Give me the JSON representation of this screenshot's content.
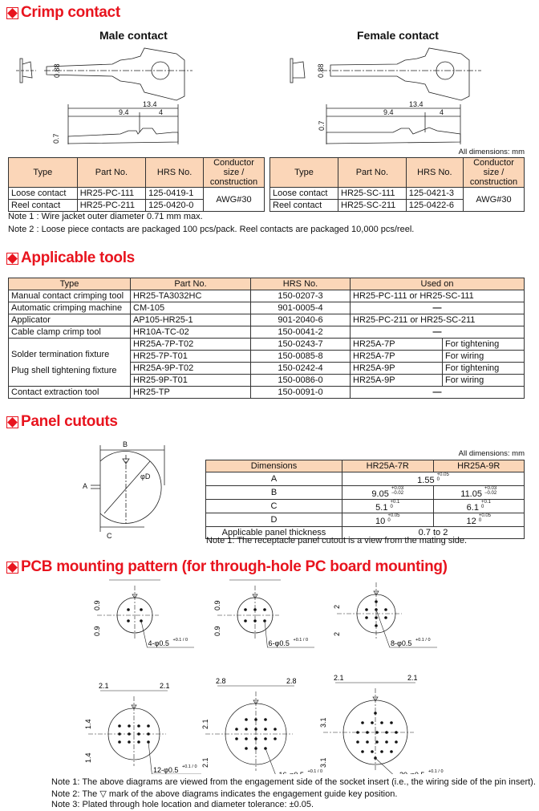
{
  "crimp": {
    "heading": "Crimp contact",
    "male_title": "Male contact",
    "female_title": "Female contact",
    "dims": {
      "height": "0.88",
      "total": "13.4",
      "left": "9.4",
      "right": "4",
      "thickness": "0.7"
    },
    "all_dims": "All dimensions: mm",
    "headers": [
      "Type",
      "Part No.",
      "HRS No.",
      "Conductor size / construction"
    ],
    "male_rows": [
      [
        "Loose contact",
        "HR25-PC-111",
        "125-0419-1"
      ],
      [
        "Reel contact",
        "HR25-PC-211",
        "125-0420-0"
      ]
    ],
    "female_rows": [
      [
        "Loose contact",
        "HR25-SC-111",
        "125-0421-3"
      ],
      [
        "Reel contact",
        "HR25-SC-211",
        "125-0422-6"
      ]
    ],
    "conductor": "AWG#30",
    "note1": "Note 1 : Wire jacket outer diameter 0.71 mm max.",
    "note2": "Note 2 : Loose piece contacts are packaged 100 pcs/pack. Reel contacts are packaged 10,000 pcs/reel."
  },
  "tools": {
    "heading": "Applicable tools",
    "headers": [
      "Type",
      "Part No.",
      "HRS No.",
      "Used on"
    ],
    "rows": [
      {
        "type": "Manual contact crimping tool",
        "part": "HR25-TA3032HC",
        "hrs": "150-0207-3",
        "used": "HR25-PC-111 or HR25-SC-111"
      },
      {
        "type": "Automatic crimping machine",
        "part": "CM-105",
        "hrs": "901-0005-4",
        "used": "—"
      },
      {
        "type": "Applicator",
        "part": "AP105-HR25-1",
        "hrs": "901-2040-6",
        "used": "HR25-PC-211 or HR25-SC-211"
      },
      {
        "type": "Cable clamp crimp tool",
        "part": "HR10A-TC-02",
        "hrs": "150-0041-2",
        "used": "—"
      }
    ],
    "fixture_type1": "Solder termination fixture",
    "fixture_type2": "Plug shell tightening fixture",
    "fixtures": [
      {
        "part": "HR25A-7P-T02",
        "hrs": "150-0243-7",
        "used": "HR25A-7P",
        "purpose": "For tightening"
      },
      {
        "part": "HR25-7P-T01",
        "hrs": "150-0085-8",
        "used": "HR25A-7P",
        "purpose": "For wiring"
      },
      {
        "part": "HR25A-9P-T02",
        "hrs": "150-0242-4",
        "used": "HR25A-9P",
        "purpose": "For tightening"
      },
      {
        "part": "HR25-9P-T01",
        "hrs": "150-0086-0",
        "used": "HR25A-9P",
        "purpose": "For wiring"
      }
    ],
    "last": {
      "type": "Contact extraction tool",
      "part": "HR25-TP",
      "hrs": "150-0091-0",
      "used": "—"
    }
  },
  "panel": {
    "heading": "Panel cutouts",
    "labels": {
      "a": "A",
      "b": "B",
      "c": "C",
      "d": "φD"
    },
    "all_dims": "All dimensions: mm",
    "headers": [
      "Dimensions",
      "HR25A-7R",
      "HR25A-9R"
    ],
    "a": {
      "label": "A",
      "value": "1.55",
      "tol_plus": "+0.05",
      "tol_minus": "0"
    },
    "b": {
      "label": "B",
      "v7": "9.05",
      "v9": "11.05",
      "tol_plus": "+0.03",
      "tol_minus": "−0.02"
    },
    "c": {
      "label": "C",
      "v7": "5.1",
      "v9": "6.1",
      "tol_plus": "+0.1",
      "tol_minus": "0"
    },
    "d": {
      "label": "D",
      "v7": "10",
      "v9": "12",
      "tol_plus": "+0.05",
      "tol_minus": "0"
    },
    "thickness": {
      "label": "Applicable panel thickness",
      "value": "0.7 to 2"
    },
    "note": "Note 1: The receptacle panel cutout is a view from the mating side."
  },
  "pcb": {
    "heading": "PCB mounting pattern (for through-hole PC board mounting)",
    "diagrams": [
      {
        "callout": "4-φ0.5",
        "top": "1",
        "side": "0.9"
      },
      {
        "callout": "6-φ0.5",
        "top": "1.5",
        "side": "0.9"
      },
      {
        "callout": "8-φ0.5",
        "top": "1.5",
        "side": "2"
      },
      {
        "callout": "12-φ0.5",
        "top": "2.1",
        "side": "1.4"
      },
      {
        "callout": "16-φ0.5",
        "top": "2.8",
        "side": "2.1"
      },
      {
        "callout": "20-φ0.5",
        "top": "2.1",
        "side": "3.1"
      }
    ],
    "tol": "+0.1 / 0",
    "note1": "Note 1: The above diagrams are viewed from the engagement side of the socket insert (i.e., the wiring side of the pin insert).",
    "note2": "Note 2: The ▽ mark of the above diagrams indicates the engagement guide key position.",
    "note3": "Note 3: Plated through hole location and diameter tolerance: ±0.05."
  }
}
